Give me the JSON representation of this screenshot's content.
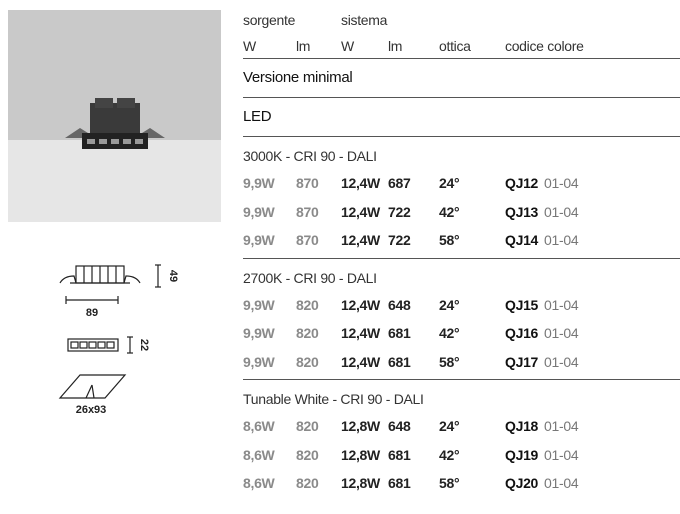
{
  "dimensions": {
    "height": "49",
    "width": "89",
    "depth": "22",
    "cutout": "26x93"
  },
  "table": {
    "group_headers": [
      "sorgente",
      "sistema"
    ],
    "columns": [
      "W",
      "lm",
      "W",
      "lm",
      "ottica",
      "codice colore"
    ],
    "version": "Versione minimal",
    "source": "LED",
    "groups": [
      {
        "title": "3000K - CRI 90 - DALI",
        "rows": [
          [
            "9,9W",
            "870",
            "12,4W",
            "687",
            "24°",
            "QJ12",
            "01-04"
          ],
          [
            "9,9W",
            "870",
            "12,4W",
            "722",
            "42°",
            "QJ13",
            "01-04"
          ],
          [
            "9,9W",
            "870",
            "12,4W",
            "722",
            "58°",
            "QJ14",
            "01-04"
          ]
        ]
      },
      {
        "title": "2700K - CRI 90 - DALI",
        "rows": [
          [
            "9,9W",
            "820",
            "12,4W",
            "648",
            "24°",
            "QJ15",
            "01-04"
          ],
          [
            "9,9W",
            "820",
            "12,4W",
            "681",
            "42°",
            "QJ16",
            "01-04"
          ],
          [
            "9,9W",
            "820",
            "12,4W",
            "681",
            "58°",
            "QJ17",
            "01-04"
          ]
        ]
      },
      {
        "title": "Tunable White - CRI 90 - DALI",
        "rows": [
          [
            "8,6W",
            "820",
            "12,8W",
            "648",
            "24°",
            "QJ18",
            "01-04"
          ],
          [
            "8,6W",
            "820",
            "12,8W",
            "681",
            "42°",
            "QJ19",
            "01-04"
          ],
          [
            "8,6W",
            "820",
            "12,8W",
            "681",
            "58°",
            "QJ20",
            "01-04"
          ]
        ]
      }
    ]
  }
}
